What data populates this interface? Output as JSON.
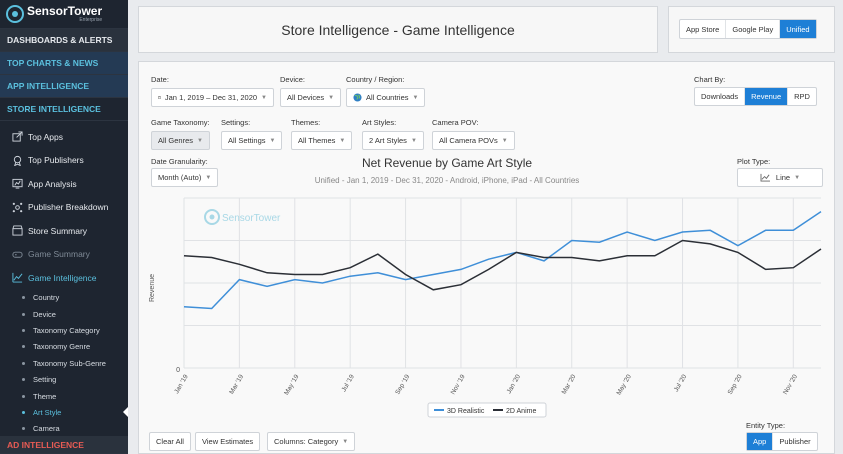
{
  "brand": {
    "name": "SensorTower",
    "sub": "Enterprise"
  },
  "sidebar": {
    "sections": [
      "DASHBOARDS & ALERTS",
      "TOP CHARTS & NEWS",
      "APP INTELLIGENCE",
      "STORE INTELLIGENCE"
    ],
    "nav": [
      {
        "label": "Top Apps",
        "icon": "share-icon"
      },
      {
        "label": "Top Publishers",
        "icon": "award-icon"
      },
      {
        "label": "App Analysis",
        "icon": "chart-window-icon"
      },
      {
        "label": "Publisher Breakdown",
        "icon": "network-icon"
      },
      {
        "label": "Store Summary",
        "icon": "store-icon"
      },
      {
        "label": "Game Summary",
        "icon": "gamepad-icon"
      },
      {
        "label": "Game Intelligence",
        "icon": "game-chart-icon"
      }
    ],
    "sub": [
      "Country",
      "Device",
      "Taxonomy Category",
      "Taxonomy Genre",
      "Taxonomy Sub-Genre",
      "Setting",
      "Theme",
      "Art Style",
      "Camera"
    ],
    "bottom": "AD INTELLIGENCE"
  },
  "header": {
    "title": "Store Intelligence - Game Intelligence"
  },
  "store_toggle": [
    "App Store",
    "Google Play",
    "Unified"
  ],
  "filters": {
    "date_label": "Date:",
    "date_value": "Jan 1, 2019 – Dec 31, 2020",
    "device_label": "Device:",
    "device_value": "All Devices",
    "country_label": "Country / Region:",
    "country_value": "All Countries",
    "chart_by_label": "Chart By:",
    "chart_by": [
      "Downloads",
      "Revenue",
      "RPD"
    ],
    "taxonomy_label": "Game Taxonomy:",
    "taxonomy_value": "All Genres",
    "settings_label": "Settings:",
    "settings_value": "All Settings",
    "themes_label": "Themes:",
    "themes_value": "All Themes",
    "art_label": "Art Styles:",
    "art_value": "2 Art Styles",
    "camera_label": "Camera POV:",
    "camera_value": "All Camera POVs",
    "granularity_label": "Date Granularity:",
    "granularity_value": "Month (Auto)",
    "plot_label": "Plot Type:",
    "plot_value": "Line"
  },
  "chart_data": {
    "type": "line",
    "title": "Net Revenue by Game Art Style",
    "subtitle": "Unified - Jan 1, 2019 - Dec 31, 2020 - Android, iPhone, iPad - All Countries",
    "ylabel": "Revenue",
    "y_tick": "0",
    "watermark": "SensorTower",
    "x": [
      "Jan '19",
      "Feb '19",
      "Mar '19",
      "Apr '19",
      "May '19",
      "Jun '19",
      "Jul '19",
      "Aug '19",
      "Sep '19",
      "Oct '19",
      "Nov '19",
      "Dec '19",
      "Jan '20",
      "Feb '20",
      "Mar '20",
      "Apr '20",
      "May '20",
      "Jun '20",
      "Jul '20",
      "Aug '20",
      "Sep '20",
      "Oct '20",
      "Nov '20",
      "Dec '20"
    ],
    "x_tick_labels": [
      "Jan '19",
      "Mar '19",
      "May '19",
      "Jul '19",
      "Sep '19",
      "Nov '19",
      "Jan '20",
      "Mar '20",
      "May '20",
      "Jul '20",
      "Sep '20",
      "Nov '20"
    ],
    "ylim": [
      0,
      100
    ],
    "series": [
      {
        "name": "3D Realistic",
        "color": "#3f8fd8",
        "values": [
          36,
          35,
          52,
          48,
          52,
          50,
          54,
          56,
          52,
          55,
          58,
          64,
          68,
          63,
          75,
          74,
          80,
          75,
          80,
          81,
          72,
          81,
          81,
          92
        ]
      },
      {
        "name": "2D Anime",
        "color": "#2b2f36",
        "values": [
          66,
          65,
          61,
          56,
          55,
          55,
          59,
          67,
          55,
          46,
          49,
          58,
          68,
          65,
          65,
          63,
          66,
          66,
          75,
          73,
          68,
          58,
          59,
          70
        ]
      }
    ],
    "legend_position": "bottom"
  },
  "entity": {
    "label": "Entity Type:",
    "options": [
      "App",
      "Publisher"
    ]
  },
  "bottom_buttons": {
    "clear": "Clear All",
    "view": "View Estimates",
    "columns": "Columns: Category"
  }
}
